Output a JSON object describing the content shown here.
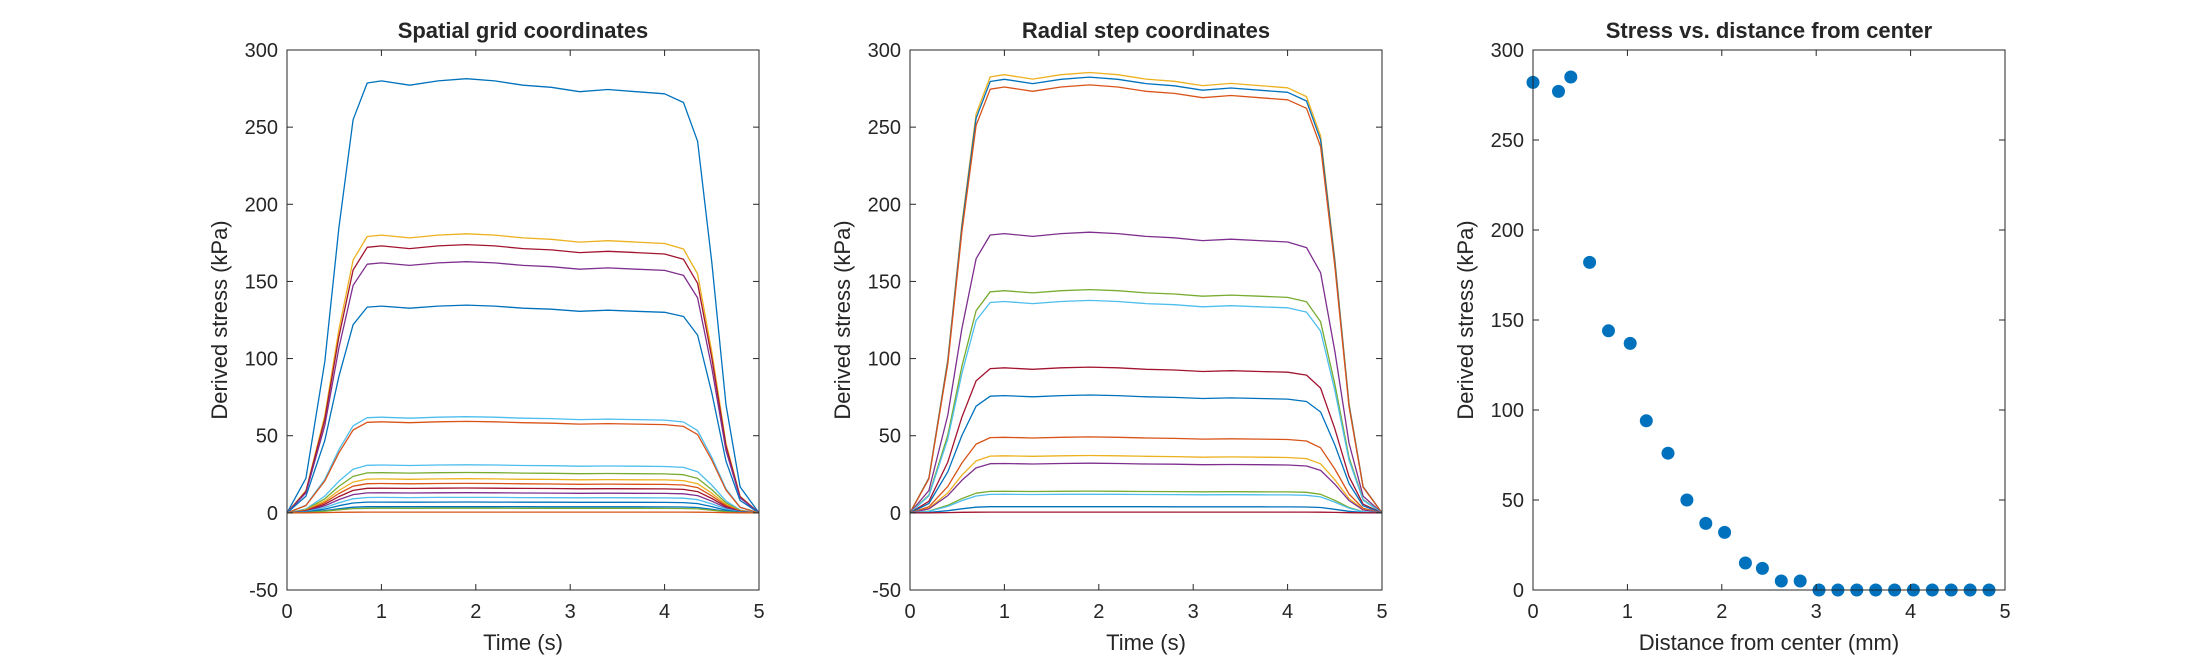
{
  "chart_data": [
    {
      "type": "line",
      "title": "Spatial grid coordinates",
      "xlabel": "Time (s)",
      "ylabel": "Derived stress (kPa)",
      "xlim": [
        0,
        5
      ],
      "ylim": [
        -50,
        300
      ],
      "xticks": [
        0,
        1,
        2,
        3,
        4,
        5
      ],
      "yticks": [
        -50,
        0,
        50,
        100,
        150,
        200,
        250,
        300
      ],
      "grid": false,
      "shape": {
        "t": [
          0,
          0.2,
          0.4,
          0.55,
          0.7,
          0.85,
          1.0,
          1.3,
          1.6,
          1.9,
          2.2,
          2.5,
          2.8,
          3.1,
          3.4,
          3.7,
          4.0,
          4.2,
          4.35,
          4.5,
          4.65,
          4.8,
          5.0
        ],
        "f": [
          0,
          0.08,
          0.35,
          0.66,
          0.91,
          0.995,
          1.0,
          0.99,
          1.0,
          1.005,
          1.0,
          0.99,
          0.985,
          0.975,
          0.98,
          0.975,
          0.97,
          0.95,
          0.86,
          0.58,
          0.25,
          0.06,
          0
        ]
      },
      "series": [
        {
          "plateau": 280,
          "color": "#0072BD"
        },
        {
          "plateau": 180,
          "color": "#EDB120"
        },
        {
          "plateau": 173,
          "color": "#A2142F"
        },
        {
          "plateau": 162,
          "color": "#7E2F8E"
        },
        {
          "plateau": 134,
          "color": "#0072BD"
        },
        {
          "plateau": 62,
          "color": "#4DBEEE"
        },
        {
          "plateau": 59,
          "color": "#D95319"
        },
        {
          "plateau": 31,
          "color": "#4DBEEE"
        },
        {
          "plateau": 26,
          "color": "#77AC30"
        },
        {
          "plateau": 22,
          "color": "#EDB120"
        },
        {
          "plateau": 19,
          "color": "#D95319"
        },
        {
          "plateau": 16,
          "color": "#A2142F"
        },
        {
          "plateau": 13,
          "color": "#7E2F8E"
        },
        {
          "plateau": 10,
          "color": "#4DBEEE"
        },
        {
          "plateau": 7,
          "color": "#0072BD"
        },
        {
          "plateau": 4,
          "color": "#0072BD"
        },
        {
          "plateau": 3,
          "color": "#77AC30"
        },
        {
          "plateau": 0.5,
          "color": "#D95319"
        }
      ]
    },
    {
      "type": "line",
      "title": "Radial step coordinates",
      "xlabel": "Time (s)",
      "ylabel": "Derived stress (kPa)",
      "xlim": [
        0,
        5
      ],
      "ylim": [
        -50,
        300
      ],
      "xticks": [
        0,
        1,
        2,
        3,
        4,
        5
      ],
      "yticks": [
        -50,
        0,
        50,
        100,
        150,
        200,
        250,
        300
      ],
      "grid": false,
      "shape": {
        "t": [
          0,
          0.2,
          0.4,
          0.55,
          0.7,
          0.85,
          1.0,
          1.3,
          1.6,
          1.9,
          2.2,
          2.5,
          2.8,
          3.1,
          3.4,
          3.7,
          4.0,
          4.2,
          4.35,
          4.5,
          4.65,
          4.8,
          5.0
        ],
        "f": [
          0,
          0.08,
          0.35,
          0.66,
          0.91,
          0.995,
          1.0,
          0.99,
          1.0,
          1.005,
          1.0,
          0.99,
          0.985,
          0.975,
          0.98,
          0.975,
          0.97,
          0.95,
          0.86,
          0.58,
          0.25,
          0.06,
          0
        ]
      },
      "series": [
        {
          "plateau": 284,
          "color": "#EDB120"
        },
        {
          "plateau": 281,
          "color": "#0072BD"
        },
        {
          "plateau": 276,
          "color": "#D95319"
        },
        {
          "plateau": 181,
          "color": "#7E2F8E"
        },
        {
          "plateau": 144,
          "color": "#77AC30"
        },
        {
          "plateau": 137,
          "color": "#4DBEEE"
        },
        {
          "plateau": 94,
          "color": "#A2142F"
        },
        {
          "plateau": 76,
          "color": "#0072BD"
        },
        {
          "plateau": 49,
          "color": "#D95319"
        },
        {
          "plateau": 37,
          "color": "#EDB120"
        },
        {
          "plateau": 32,
          "color": "#7E2F8E"
        },
        {
          "plateau": 14,
          "color": "#77AC30"
        },
        {
          "plateau": 12,
          "color": "#4DBEEE"
        },
        {
          "plateau": 4,
          "color": "#0072BD"
        },
        {
          "plateau": 0.5,
          "color": "#A2142F"
        }
      ]
    },
    {
      "type": "scatter",
      "title": "Stress vs. distance from center",
      "xlabel": "Distance from center (mm)",
      "ylabel": "Derived stress (kPa)",
      "xlim": [
        0,
        5
      ],
      "ylim": [
        0,
        300
      ],
      "xticks": [
        0,
        1,
        2,
        3,
        4,
        5
      ],
      "yticks": [
        0,
        50,
        100,
        150,
        200,
        250,
        300
      ],
      "grid": false,
      "color": "#0072BD",
      "x": [
        0,
        0.27,
        0.4,
        0.6,
        0.8,
        1.03,
        1.2,
        1.43,
        1.63,
        1.83,
        2.03,
        2.25,
        2.43,
        2.63,
        2.83,
        3.03,
        3.23,
        3.43,
        3.63,
        3.83,
        4.03,
        4.23,
        4.43,
        4.63,
        4.83
      ],
      "y": [
        282,
        277,
        285,
        182,
        144,
        137,
        94,
        76,
        50,
        37,
        32,
        15,
        12,
        5,
        5,
        0,
        0,
        0,
        0,
        0,
        0,
        0,
        0,
        0,
        0
      ]
    }
  ]
}
